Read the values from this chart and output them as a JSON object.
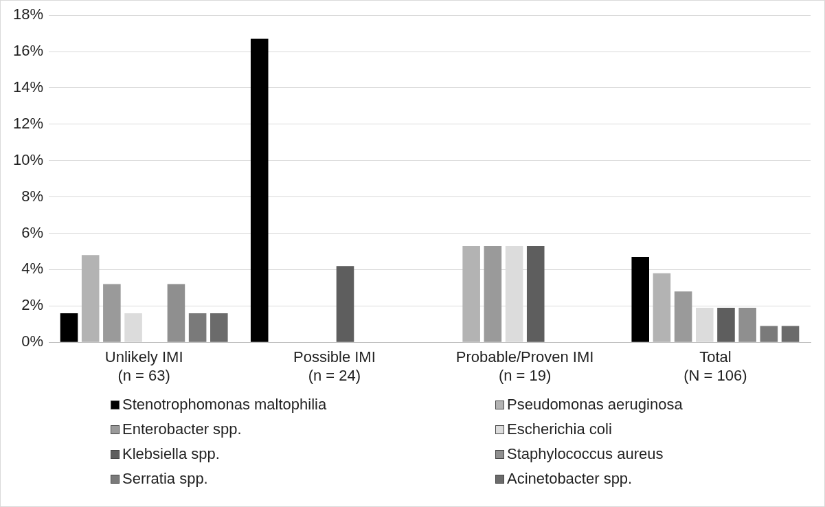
{
  "chart_data": {
    "type": "bar",
    "categories": [
      "Unlikely IMI\n(n = 63)",
      "Possible IMI\n(n = 24)",
      "Probable/Proven IMI\n(n = 19)",
      "Total\n(N = 106)"
    ],
    "series": [
      {
        "name": "Stenotrophomonas maltophilia",
        "color": "#000000",
        "values": [
          1.6,
          16.7,
          0,
          4.7
        ]
      },
      {
        "name": "Pseudomonas aeruginosa",
        "color": "#b3b3b3",
        "values": [
          4.8,
          0,
          5.3,
          3.8
        ]
      },
      {
        "name": "Enterobacter spp.",
        "color": "#9a9a9a",
        "values": [
          3.2,
          0,
          5.3,
          2.8
        ]
      },
      {
        "name": "Escherichia coli",
        "color": "#dcdcdc",
        "values": [
          1.6,
          0,
          5.3,
          1.9
        ]
      },
      {
        "name": "Klebsiella spp.",
        "color": "#5e5e5e",
        "values": [
          0,
          4.2,
          5.3,
          1.9
        ]
      },
      {
        "name": "Staphylococcus aureus",
        "color": "#8f8f8f",
        "values": [
          3.2,
          0,
          0,
          1.9
        ]
      },
      {
        "name": "Serratia spp.",
        "color": "#7a7a7a",
        "values": [
          1.6,
          0,
          0,
          0.9
        ]
      },
      {
        "name": "Acinetobacter spp.",
        "color": "#6b6b6b",
        "values": [
          1.6,
          0,
          0,
          0.9
        ]
      }
    ],
    "ylim": [
      0,
      18
    ],
    "yticks": [
      {
        "value": 0,
        "label": "0%"
      },
      {
        "value": 2,
        "label": "2%"
      },
      {
        "value": 4,
        "label": "4%"
      },
      {
        "value": 6,
        "label": "6%"
      },
      {
        "value": 8,
        "label": "8%"
      },
      {
        "value": 10,
        "label": "10%"
      },
      {
        "value": 12,
        "label": "12%"
      },
      {
        "value": 14,
        "label": "14%"
      },
      {
        "value": 16,
        "label": "16%"
      },
      {
        "value": 18,
        "label": "18%"
      }
    ],
    "grid": "y",
    "legend": "bottom"
  }
}
